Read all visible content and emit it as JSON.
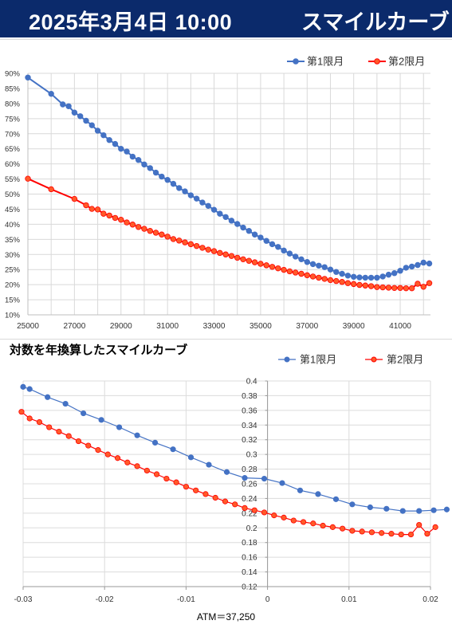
{
  "header": {
    "date": "2025年3月4日 10:00",
    "title": "スマイルカーブ"
  },
  "colors": {
    "banner": "#0b2a6b",
    "series1": "#4472c4",
    "series2": "#ff0000"
  },
  "chart_data": [
    {
      "type": "line",
      "title": "",
      "legend": "top-right",
      "grid": true,
      "xlim": [
        25000,
        42300
      ],
      "ylim": [
        10,
        90
      ],
      "x_ticks": [
        "25000",
        "27000",
        "29000",
        "31000",
        "33000",
        "35000",
        "37000",
        "39000",
        "41000"
      ],
      "y_ticks": [
        "10%",
        "15%",
        "20%",
        "25%",
        "30%",
        "35%",
        "40%",
        "45%",
        "50%",
        "55%",
        "60%",
        "65%",
        "70%",
        "75%",
        "80%",
        "85%",
        "90%"
      ],
      "series": [
        {
          "name": "第1限月",
          "x": [
            25000,
            26000,
            26500,
            26750,
            27000,
            27250,
            27500,
            27750,
            28000,
            28250,
            28500,
            28750,
            29000,
            29250,
            29500,
            29750,
            30000,
            30250,
            30500,
            30750,
            31000,
            31250,
            31500,
            31750,
            32000,
            32250,
            32500,
            32750,
            33000,
            33250,
            33500,
            33750,
            34000,
            34250,
            34500,
            34750,
            35000,
            35250,
            35500,
            35750,
            36000,
            36250,
            36500,
            36750,
            37000,
            37250,
            37500,
            37750,
            38000,
            38250,
            38500,
            38750,
            39000,
            39250,
            39500,
            39750,
            40000,
            40250,
            40500,
            40750,
            41000,
            41250,
            41500,
            41750,
            42000,
            42250
          ],
          "values": [
            88.6,
            83.2,
            79.7,
            79.1,
            77.0,
            75.8,
            74.3,
            72.8,
            71.0,
            69.5,
            67.9,
            66.6,
            65.0,
            64.1,
            62.4,
            61.3,
            59.8,
            58.6,
            57.1,
            55.8,
            54.7,
            53.4,
            52.0,
            50.9,
            49.6,
            48.5,
            47.2,
            46.1,
            44.8,
            43.5,
            42.4,
            41.2,
            40.1,
            38.9,
            37.8,
            36.6,
            35.6,
            34.5,
            33.4,
            32.5,
            31.3,
            30.3,
            29.3,
            28.4,
            27.5,
            26.8,
            26.3,
            25.8,
            25.0,
            24.2,
            23.6,
            23.0,
            22.6,
            22.4,
            22.3,
            22.3,
            22.3,
            22.7,
            23.3,
            23.8,
            24.6,
            25.6,
            26.0,
            26.5,
            27.3,
            27.0
          ]
        },
        {
          "name": "第2限月",
          "x": [
            25000,
            26000,
            27000,
            27500,
            27750,
            28000,
            28250,
            28500,
            28750,
            29000,
            29250,
            29500,
            29750,
            30000,
            30250,
            30500,
            30750,
            31000,
            31250,
            31500,
            31750,
            32000,
            32250,
            32500,
            32750,
            33000,
            33250,
            33500,
            33750,
            34000,
            34250,
            34500,
            34750,
            35000,
            35250,
            35500,
            35750,
            36000,
            36250,
            36500,
            36750,
            37000,
            37250,
            37500,
            37750,
            38000,
            38250,
            38500,
            38750,
            39000,
            39250,
            39500,
            39750,
            40000,
            40250,
            40500,
            40750,
            41000,
            41250,
            41500,
            41750,
            42000,
            42250
          ],
          "values": [
            55.1,
            51.6,
            48.4,
            46.3,
            45.1,
            44.9,
            43.5,
            42.9,
            42.1,
            41.5,
            40.6,
            39.9,
            39.1,
            38.5,
            37.8,
            37.2,
            36.6,
            35.9,
            35.1,
            34.6,
            34.0,
            33.4,
            32.8,
            32.2,
            31.6,
            31.1,
            30.5,
            30.0,
            29.5,
            28.9,
            28.4,
            27.9,
            27.4,
            26.9,
            26.4,
            25.9,
            25.4,
            24.9,
            24.4,
            24.0,
            23.6,
            23.1,
            22.7,
            22.3,
            21.9,
            21.5,
            21.2,
            20.9,
            20.5,
            20.2,
            19.9,
            19.7,
            19.5,
            19.2,
            19.1,
            19.0,
            18.9,
            18.9,
            18.8,
            18.8,
            20.3,
            19.3,
            20.5
          ]
        }
      ]
    },
    {
      "type": "line",
      "title": "対数を年換算したスマイルカーブ",
      "legend": "top-right",
      "grid": true,
      "xlim": [
        -0.03,
        0.02
      ],
      "ylim": [
        0.12,
        0.4
      ],
      "x_ticks": [
        "-0.03",
        "-0.02",
        "-0.01",
        "0",
        "0.01",
        "0.02"
      ],
      "y_ticks": [
        "0.12",
        "0.14",
        "0.16",
        "0.18",
        "0.2",
        "0.22",
        "0.24",
        "0.26",
        "0.28",
        "0.3",
        "0.32",
        "0.34",
        "0.36",
        "0.38",
        "0.4"
      ],
      "annotation": "ATM＝37,250",
      "series": [
        {
          "name": "第1限月",
          "x": [
            -0.03,
            -0.0292,
            -0.027,
            -0.0248,
            -0.0226,
            -0.0204,
            -0.0182,
            -0.016,
            -0.0138,
            -0.0116,
            -0.0094,
            -0.0072,
            -0.005,
            -0.0028,
            -0.0004,
            0.0018,
            0.004,
            0.0062,
            0.0084,
            0.0104,
            0.0126,
            0.0146,
            0.0166,
            0.0186,
            0.0204,
            0.022
          ],
          "values": [
            0.392,
            0.389,
            0.378,
            0.369,
            0.356,
            0.347,
            0.337,
            0.326,
            0.316,
            0.307,
            0.296,
            0.286,
            0.276,
            0.268,
            0.267,
            0.261,
            0.251,
            0.246,
            0.239,
            0.232,
            0.228,
            0.226,
            0.223,
            0.223,
            0.224,
            0.225
          ]
        },
        {
          "name": "第2限月",
          "x": [
            -0.0302,
            -0.0292,
            -0.028,
            -0.0268,
            -0.0256,
            -0.0244,
            -0.0232,
            -0.022,
            -0.0208,
            -0.0196,
            -0.0184,
            -0.0172,
            -0.016,
            -0.0148,
            -0.0136,
            -0.0124,
            -0.0112,
            -0.01,
            -0.0088,
            -0.0076,
            -0.0064,
            -0.0052,
            -0.004,
            -0.0028,
            -0.0016,
            -0.0004,
            0.0008,
            0.002,
            0.0032,
            0.0044,
            0.0056,
            0.0068,
            0.008,
            0.0092,
            0.0104,
            0.0116,
            0.0128,
            0.014,
            0.0152,
            0.0164,
            0.0176,
            0.0186,
            0.0196,
            0.0206
          ],
          "values": [
            0.358,
            0.349,
            0.344,
            0.337,
            0.331,
            0.325,
            0.318,
            0.312,
            0.306,
            0.3,
            0.295,
            0.289,
            0.284,
            0.278,
            0.273,
            0.267,
            0.262,
            0.256,
            0.251,
            0.246,
            0.241,
            0.236,
            0.232,
            0.227,
            0.224,
            0.221,
            0.217,
            0.214,
            0.21,
            0.208,
            0.206,
            0.203,
            0.201,
            0.199,
            0.196,
            0.195,
            0.194,
            0.193,
            0.192,
            0.191,
            0.191,
            0.204,
            0.192,
            0.201
          ]
        }
      ]
    }
  ]
}
